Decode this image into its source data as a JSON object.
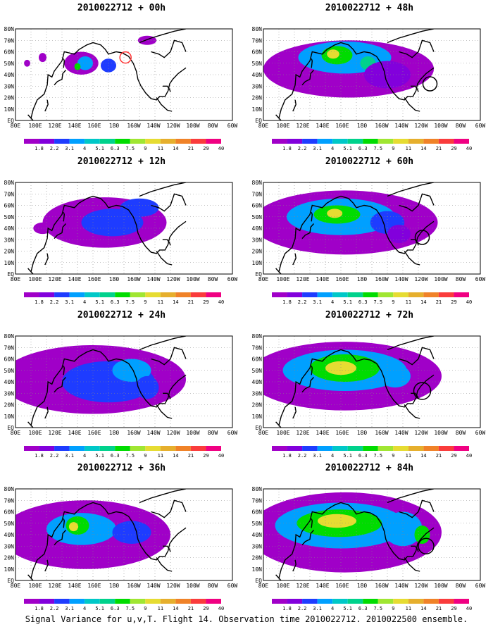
{
  "base_time": "2010022712",
  "title_joiner": " + ",
  "panels": [
    {
      "lead": "00h"
    },
    {
      "lead": "48h"
    },
    {
      "lead": "12h"
    },
    {
      "lead": "60h"
    },
    {
      "lead": "24h"
    },
    {
      "lead": "72h"
    },
    {
      "lead": "36h"
    },
    {
      "lead": "84h"
    }
  ],
  "lat_labels": [
    "EQ",
    "10N",
    "20N",
    "30N",
    "40N",
    "50N",
    "60N",
    "70N",
    "80N"
  ],
  "lon_labels": [
    "80E",
    "100E",
    "120E",
    "140E",
    "160E",
    "180",
    "160W",
    "140W",
    "120W",
    "100W",
    "80W",
    "60W"
  ],
  "colorbar": {
    "labels": [
      "1.8",
      "2.2",
      "3.1",
      "4",
      "5.1",
      "6.3",
      "7.5",
      "9",
      "11",
      "14",
      "21",
      "29",
      "40"
    ],
    "colors": [
      "#a000c8",
      "#8200dc",
      "#1e3cff",
      "#00a0ff",
      "#00c8c8",
      "#00d28c",
      "#00dc00",
      "#a0e632",
      "#e6dc32",
      "#e6af2d",
      "#f08228",
      "#fa3c3c",
      "#f00082"
    ]
  },
  "caption": "Signal Variance for u,v,T. Flight 14. Observation time 2010022712. 2010022500 ensemble."
}
